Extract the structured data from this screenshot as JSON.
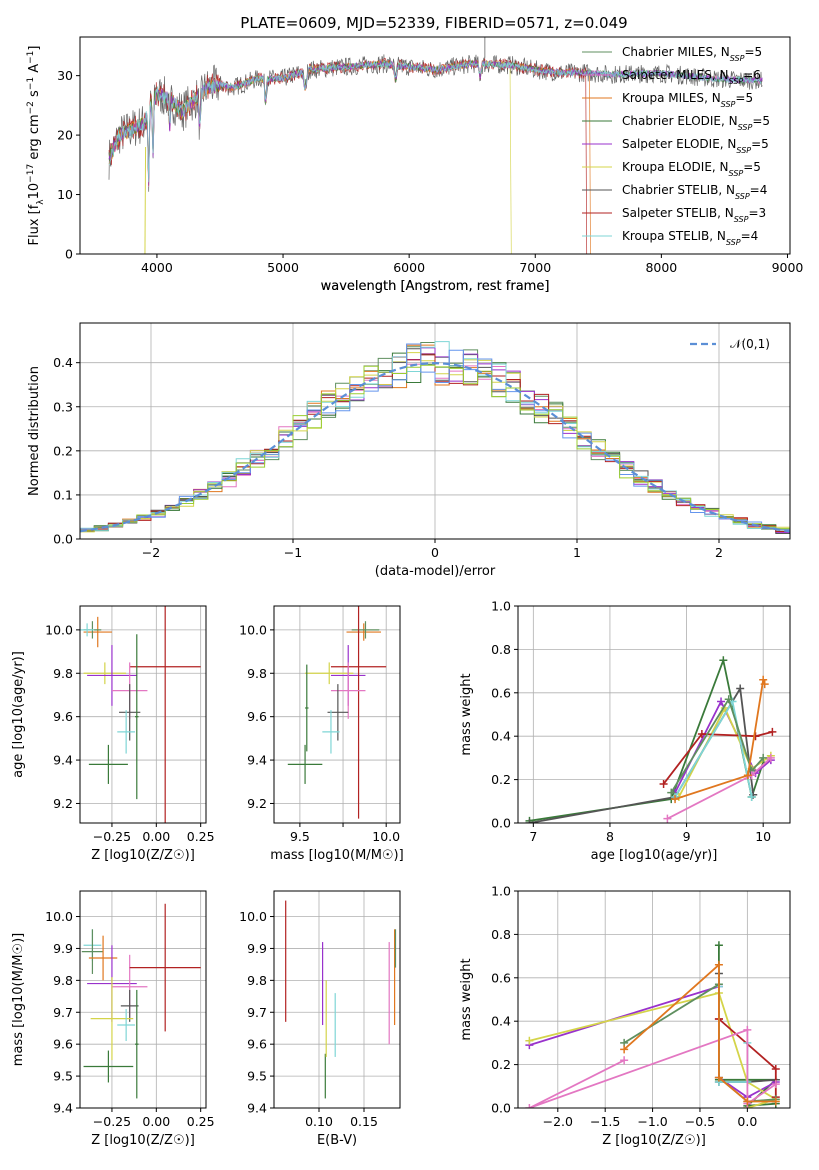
{
  "figure": {
    "title": "PLATE=0609, MJD=52339, FIBERID=0571, z=0.049",
    "models": [
      {
        "name": "Chabrier MILES",
        "nssp": "5",
        "color": "#5f8f5f"
      },
      {
        "name": "Salpeter MILES",
        "nssp": "6",
        "color": "#e377c2"
      },
      {
        "name": "Kroupa MILES",
        "nssp": "5",
        "color": "#e0771f"
      },
      {
        "name": "Chabrier ELODIE",
        "nssp": "5",
        "color": "#3a7a3a"
      },
      {
        "name": "Salpeter ELODIE",
        "nssp": "5",
        "color": "#9932cc"
      },
      {
        "name": "Kroupa ELODIE",
        "nssp": "5",
        "color": "#d4d44a"
      },
      {
        "name": "Chabrier STELIB",
        "nssp": "4",
        "color": "#555555"
      },
      {
        "name": "Salpeter STELIB",
        "nssp": "3",
        "color": "#b22222"
      },
      {
        "name": "Kroupa STELIB",
        "nssp": "4",
        "color": "#7fd6d6"
      }
    ],
    "extra_colors": {
      "blue": "#6495ed",
      "lime": "#9acd32"
    }
  },
  "chart_data": [
    {
      "type": "line",
      "id": "spectrum",
      "title": "PLATE=0609, MJD=52339, FIBERID=0571, z=0.049",
      "xlabel": "wavelength [Angstrom, rest frame]",
      "ylabel_parts": [
        "Flux [f",
        "λ",
        "10",
        "−17",
        " erg cm",
        "−2",
        " s",
        "−1",
        " A",
        "−1",
        "]"
      ],
      "xlim": [
        3390,
        9020
      ],
      "ylim": [
        0,
        36.5
      ],
      "xticks": [
        4000,
        5000,
        6000,
        7000,
        8000,
        9000
      ],
      "yticks": [
        0,
        10,
        20,
        30
      ],
      "grid": false,
      "legend_position": "upper-right",
      "envelope": {
        "x": [
          3620,
          3700,
          3800,
          3900,
          3950,
          4000,
          4100,
          4200,
          4300,
          4400,
          4500,
          4600,
          4800,
          5000,
          5200,
          5500,
          5800,
          6000,
          6200,
          6500,
          6800,
          7000,
          7200,
          7400,
          7600,
          7800,
          8000,
          8200,
          8400,
          8600,
          8800
        ],
        "y": [
          16,
          20,
          21,
          22,
          25,
          27,
          26,
          24,
          26,
          28,
          28.5,
          28,
          29.5,
          29.5,
          31,
          31.5,
          32,
          31.5,
          31,
          32,
          31.8,
          31,
          30.5,
          30.5,
          30.2,
          30.3,
          30.4,
          30,
          29.5,
          29.3,
          29.2
        ]
      }
    },
    {
      "type": "histogram",
      "id": "residuals",
      "xlabel": "(data-model)/error",
      "ylabel": "Normed distribution",
      "xlim": [
        -2.5,
        2.5
      ],
      "ylim": [
        0,
        0.49
      ],
      "xticks": [
        -2,
        -1,
        0,
        1,
        2
      ],
      "yticks": [
        0,
        0.1,
        0.2,
        0.3,
        0.4
      ],
      "grid": true,
      "legend": "𝒩(0,1)",
      "reference_curve": "normal pdf, mean 0, sigma 1",
      "bin_width": 0.1
    },
    {
      "type": "scatter",
      "id": "age_vs_Z",
      "xlabel": "Z [log10(Z/Z☉)]",
      "ylabel": "age [log10(age/yr)]",
      "xlim": [
        -0.43,
        0.28
      ],
      "ylim": [
        9.11,
        10.11
      ],
      "xticks": [
        -0.25,
        0.0,
        0.25
      ],
      "yticks": [
        9.2,
        9.4,
        9.6,
        9.8,
        10.0
      ],
      "grid": true,
      "errorbars": [
        {
          "model": "Kroupa MILES",
          "x": -0.33,
          "xerr": 0.08,
          "y": 9.99,
          "yerr": 0.07
        },
        {
          "model": "Chabrier MILES",
          "x": -0.36,
          "xerr": 0.05,
          "y": 10.0,
          "yerr": 0.04
        },
        {
          "model": "Kroupa STELIB",
          "x": -0.39,
          "xerr": 0.04,
          "y": 10.0,
          "yerr": 0.03
        },
        {
          "model": "Kroupa ELODIE",
          "x": -0.29,
          "xerr": 0.12,
          "y": 9.8,
          "yerr": 0.05
        },
        {
          "model": "Salpeter ELODIE",
          "x": -0.25,
          "xerr": 0.14,
          "y": 9.79,
          "yerr": 0.14
        },
        {
          "model": "Salpeter STELIB",
          "x": 0.05,
          "xerr": 0.2,
          "y": 9.83,
          "yerr": 0.8
        },
        {
          "model": "Salpeter MILES",
          "x": -0.15,
          "xerr": 0.1,
          "y": 9.72,
          "yerr": 0.13
        },
        {
          "model": "Chabrier STELIB",
          "x": -0.15,
          "xerr": 0.06,
          "y": 9.62,
          "yerr": 0.13
        },
        {
          "model": "Kroupa STELIB",
          "x": -0.17,
          "xerr": 0.05,
          "y": 9.53,
          "yerr": 0.1
        },
        {
          "model": "Chabrier ELODIE",
          "x": -0.27,
          "xerr": 0.11,
          "y": 9.38,
          "yerr": 0.09
        },
        {
          "model": "Chabrier ELODIE",
          "x": -0.11,
          "xerr": 0.01,
          "y": 9.6,
          "yerr": 0.38
        }
      ]
    },
    {
      "type": "scatter",
      "id": "age_vs_mass",
      "xlabel": "mass [log10(M/M☉)]",
      "ylabel": "",
      "xlim": [
        9.35,
        10.08
      ],
      "ylim": [
        9.11,
        10.11
      ],
      "xticks": [
        9.5,
        9.75,
        10.0
      ],
      "xticklabels": [
        "9.5",
        "",
        "10.0"
      ],
      "yticks": [
        9.2,
        9.4,
        9.6,
        9.8,
        10.0
      ],
      "grid": true,
      "errorbars": [
        {
          "model": "Kroupa MILES",
          "x": 9.87,
          "xerr": 0.1,
          "y": 9.99,
          "yerr": 0.04
        },
        {
          "model": "Chabrier MILES",
          "x": 9.88,
          "xerr": 0.08,
          "y": 10.0,
          "yerr": 0.04
        },
        {
          "model": "Kroupa ELODIE",
          "x": 9.67,
          "xerr": 0.14,
          "y": 9.8,
          "yerr": 0.05
        },
        {
          "model": "Salpeter ELODIE",
          "x": 9.78,
          "xerr": 0.1,
          "y": 9.79,
          "yerr": 0.14
        },
        {
          "model": "Salpeter STELIB",
          "x": 9.84,
          "xerr": 0.16,
          "y": 9.83,
          "yerr": 0.7
        },
        {
          "model": "Salpeter MILES",
          "x": 9.78,
          "xerr": 0.1,
          "y": 9.72,
          "yerr": 0.13
        },
        {
          "model": "Chabrier STELIB",
          "x": 9.72,
          "xerr": 0.06,
          "y": 9.62,
          "yerr": 0.13
        },
        {
          "model": "Kroupa STELIB",
          "x": 9.68,
          "xerr": 0.05,
          "y": 9.53,
          "yerr": 0.1
        },
        {
          "model": "Chabrier ELODIE",
          "x": 9.53,
          "xerr": 0.1,
          "y": 9.38,
          "yerr": 0.09
        },
        {
          "model": "Chabrier ELODIE",
          "x": 9.54,
          "xerr": 0.01,
          "y": 9.64,
          "yerr": 0.2
        }
      ]
    },
    {
      "type": "line",
      "id": "massweight_vs_age",
      "xlabel": "age [log10(age/yr)]",
      "ylabel": "mass weight",
      "xlim": [
        6.8,
        10.35
      ],
      "ylim": [
        0,
        1.0
      ],
      "xticks": [
        7,
        8,
        9,
        10
      ],
      "yticks": [
        0.0,
        0.2,
        0.4,
        0.6,
        0.8,
        1.0
      ],
      "grid": true,
      "series": [
        {
          "model": "Chabrier ELODIE",
          "x": [
            6.95,
            8.8,
            9.48,
            9.85,
            10.0
          ],
          "y": [
            0.01,
            0.11,
            0.75,
            0.12,
            0.28
          ]
        },
        {
          "model": "Salpeter ELODIE",
          "x": [
            8.85,
            9.45,
            9.9,
            10.1
          ],
          "y": [
            0.14,
            0.56,
            0.23,
            0.29
          ]
        },
        {
          "model": "Kroupa ELODIE",
          "x": [
            8.9,
            9.5,
            9.85,
            10.1
          ],
          "y": [
            0.12,
            0.53,
            0.25,
            0.31
          ]
        },
        {
          "model": "Chabrier STELIB",
          "x": [
            6.95,
            8.85,
            9.7,
            9.87
          ],
          "y": [
            0.0,
            0.12,
            0.62,
            0.13
          ]
        },
        {
          "model": "Salpeter STELIB",
          "x": [
            8.7,
            9.2,
            9.9,
            10.12
          ],
          "y": [
            0.18,
            0.41,
            0.4,
            0.42
          ]
        },
        {
          "model": "Kroupa STELIB",
          "x": [
            8.85,
            9.6,
            9.85
          ],
          "y": [
            0.12,
            0.56,
            0.12
          ]
        },
        {
          "model": "Chabrier MILES",
          "x": [
            8.8,
            9.55,
            9.85,
            10.0
          ],
          "y": [
            0.14,
            0.57,
            0.24,
            0.3
          ]
        },
        {
          "model": "Salpeter MILES",
          "x": [
            8.75,
            9.85,
            10.1
          ],
          "y": [
            0.02,
            0.22,
            0.3
          ]
        },
        {
          "model": "Kroupa MILES",
          "x": [
            8.85,
            9.8,
            10.0,
            10.02
          ],
          "y": [
            0.11,
            0.22,
            0.66,
            0.64
          ]
        }
      ]
    },
    {
      "type": "scatter",
      "id": "mass_vs_Z",
      "xlabel": "Z [log10(Z/Z☉)]",
      "ylabel": "mass [log10(M/M☉)]",
      "xlim": [
        -0.43,
        0.28
      ],
      "ylim": [
        9.4,
        10.08
      ],
      "xticks": [
        -0.25,
        0.0,
        0.25
      ],
      "yticks": [
        9.4,
        9.5,
        9.6,
        9.7,
        9.8,
        9.9,
        10.0
      ],
      "grid": true,
      "errorbars": [
        {
          "model": "Kroupa STELIB",
          "x": -0.36,
          "xerr": 0.05,
          "y": 9.91,
          "yerr": 0.05
        },
        {
          "model": "Chabrier MILES",
          "x": -0.36,
          "xerr": 0.06,
          "y": 9.89,
          "yerr": 0.07
        },
        {
          "model": "Kroupa MILES",
          "x": -0.3,
          "xerr": 0.08,
          "y": 9.87,
          "yerr": 0.07
        },
        {
          "model": "Salpeter ELODIE",
          "x": -0.25,
          "xerr": 0.14,
          "y": 9.79,
          "yerr": 0.12
        },
        {
          "model": "Salpeter MILES",
          "x": -0.15,
          "xerr": 0.1,
          "y": 9.78,
          "yerr": 0.1
        },
        {
          "model": "Salpeter STELIB",
          "x": 0.05,
          "xerr": 0.2,
          "y": 9.84,
          "yerr": 0.2
        },
        {
          "model": "Chabrier STELIB",
          "x": -0.15,
          "xerr": 0.05,
          "y": 9.72,
          "yerr": 0.05
        },
        {
          "model": "Kroupa ELODIE",
          "x": -0.25,
          "xerr": 0.12,
          "y": 9.68,
          "yerr": 0.13
        },
        {
          "model": "Kroupa STELIB",
          "x": -0.17,
          "xerr": 0.05,
          "y": 9.66,
          "yerr": 0.05
        },
        {
          "model": "Chabrier ELODIE",
          "x": -0.27,
          "xerr": 0.14,
          "y": 9.53,
          "yerr": 0.05
        },
        {
          "model": "Chabrier ELODIE",
          "x": -0.11,
          "xerr": 0.01,
          "y": 9.6,
          "yerr": 0.17
        }
      ]
    },
    {
      "type": "scatter",
      "id": "mass_vs_ebv",
      "xlabel": "E(B-V)",
      "ylabel": "",
      "xlim": [
        0.05,
        0.19
      ],
      "ylim": [
        9.4,
        10.08
      ],
      "xticks": [
        0.1,
        0.15
      ],
      "yticks": [
        9.4,
        9.5,
        9.6,
        9.7,
        9.8,
        9.9,
        10.0
      ],
      "grid": true,
      "errorbars": [
        {
          "model": "Salpeter STELIB",
          "x": 0.063,
          "y": 9.86,
          "yerr": 0.19
        },
        {
          "model": "Salpeter ELODIE",
          "x": 0.104,
          "y": 9.79,
          "yerr": 0.13
        },
        {
          "model": "Chabrier ELODIE",
          "x": 0.107,
          "y": 9.5,
          "yerr": 0.07
        },
        {
          "model": "Kroupa ELODIE",
          "x": 0.108,
          "y": 9.68,
          "yerr": 0.12
        },
        {
          "model": "Kroupa STELIB",
          "x": 0.118,
          "y": 9.66,
          "yerr": 0.1
        },
        {
          "model": "Salpeter MILES",
          "x": 0.178,
          "y": 9.76,
          "yerr": 0.16
        },
        {
          "model": "Kroupa MILES",
          "x": 0.184,
          "y": 9.81,
          "yerr": 0.15
        },
        {
          "model": "Chabrier MILES",
          "x": 0.185,
          "y": 9.9,
          "yerr": 0.06
        }
      ]
    },
    {
      "type": "line",
      "id": "massweight_vs_Z",
      "xlabel": "Z [log10(Z/Z☉)]",
      "ylabel": "mass weight",
      "xlim": [
        -2.42,
        0.45
      ],
      "ylim": [
        0,
        1.0
      ],
      "xticks": [
        -2.0,
        -1.5,
        -1.0,
        -0.5,
        0.0
      ],
      "yticks": [
        0.0,
        0.2,
        0.4,
        0.6,
        0.8,
        1.0
      ],
      "grid": true,
      "series": [
        {
          "model": "Chabrier ELODIE",
          "x": [
            -0.3,
            -0.3,
            0.3,
            0.0,
            0.3
          ],
          "y": [
            0.75,
            0.13,
            0.13,
            0.01,
            0.02
          ]
        },
        {
          "model": "Salpeter ELODIE",
          "x": [
            -2.3,
            -0.3,
            -0.3,
            0.0,
            0.3
          ],
          "y": [
            0.29,
            0.56,
            0.14,
            0.05,
            0.12
          ]
        },
        {
          "model": "Kroupa ELODIE",
          "x": [
            -2.3,
            -0.3,
            0.0,
            0.3,
            0.0
          ],
          "y": [
            0.31,
            0.53,
            0.12,
            0.04,
            0.0
          ]
        },
        {
          "model": "Chabrier STELIB",
          "x": [
            -0.3,
            -0.3,
            0.0,
            0.3
          ],
          "y": [
            0.62,
            0.12,
            0.12,
            0.13
          ]
        },
        {
          "model": "Salpeter STELIB",
          "x": [
            -0.3,
            -0.3,
            0.3,
            0.3
          ],
          "y": [
            0.41,
            0.41,
            0.18,
            0.05
          ]
        },
        {
          "model": "Kroupa STELIB",
          "x": [
            -0.3,
            -0.3,
            0.0,
            0.0
          ],
          "y": [
            0.56,
            0.12,
            0.12,
            0.3
          ]
        },
        {
          "model": "Chabrier MILES",
          "x": [
            -1.3,
            -0.3,
            -0.3,
            0.0,
            0.3
          ],
          "y": [
            0.3,
            0.57,
            0.14,
            0.03,
            0.04
          ]
        },
        {
          "model": "Salpeter MILES",
          "x": [
            -1.3,
            -2.3,
            0.0,
            0.0,
            0.3
          ],
          "y": [
            0.22,
            0.0,
            0.36,
            0.02,
            0.11
          ]
        },
        {
          "model": "Kroupa MILES",
          "x": [
            -1.3,
            -0.3,
            -0.3,
            0.0,
            0.3
          ],
          "y": [
            0.27,
            0.66,
            0.14,
            0.03,
            0.03
          ]
        }
      ]
    }
  ]
}
